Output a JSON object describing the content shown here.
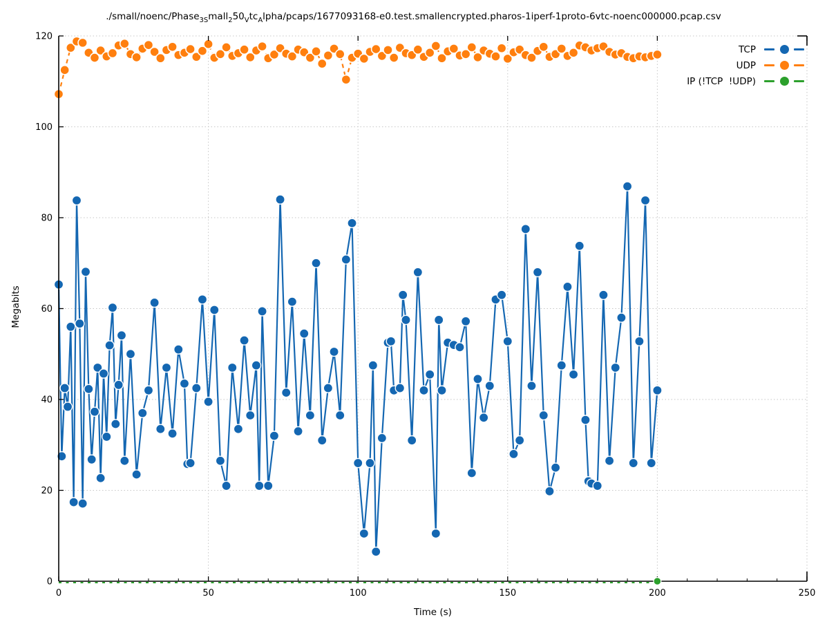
{
  "figure": {
    "xlabel": "Time (s)",
    "ylabel": "Megabits",
    "title_segments": [
      {
        "t": "./small/noenc/Phase"
      },
      {
        "s": "3S"
      },
      {
        "t": "mall"
      },
      {
        "s": "2"
      },
      {
        "t": "50"
      },
      {
        "s": "V"
      },
      {
        "t": "tc"
      },
      {
        "s": "A"
      },
      {
        "t": "lpha/pcaps/1677093168-e0.test.smallencrypted.pharos-1iperf-1proto-6vtc-noenc000000.pcap.csv"
      }
    ]
  },
  "colors": {
    "tcp": "#1467b2",
    "udp": "#ff7f0e",
    "ip": "#2ca02c",
    "axis": "#000000",
    "grid": "#c6c6c6",
    "marker_edge": "#ffffff",
    "background": "#ffffff"
  },
  "chart_data": {
    "type": "line",
    "title": "./small/noenc/Phase3Small250vtcAlpha/pcaps/1677093168-e0.test.smallencrypted.pharos-1iperf-1proto-6vtc-noenc000000.pcap.csv",
    "xlabel": "Time (s)",
    "ylabel": "Megabits",
    "xlim": [
      0,
      250
    ],
    "ylim": [
      0,
      120
    ],
    "xticks": [
      0,
      50,
      100,
      150,
      200,
      250
    ],
    "yticks": [
      0,
      20,
      40,
      60,
      80,
      100,
      120
    ],
    "x_minor_tick_step": 10,
    "grid": "dotted",
    "legend_position": "top-right-inside",
    "series": [
      {
        "name": "TCP",
        "color_key": "tcp",
        "line": "solid",
        "marker": "filled-circle",
        "points": [
          [
            0,
            65.3
          ],
          [
            1,
            27.5
          ],
          [
            2,
            42.5
          ],
          [
            3,
            38.4
          ],
          [
            4,
            56.0
          ],
          [
            5,
            17.4
          ],
          [
            6,
            83.8
          ],
          [
            7,
            56.7
          ],
          [
            8,
            17.1
          ],
          [
            9,
            68.1
          ],
          [
            10,
            42.3
          ],
          [
            11,
            26.8
          ],
          [
            12,
            37.3
          ],
          [
            13,
            47.0
          ],
          [
            14,
            22.7
          ],
          [
            15,
            45.7
          ],
          [
            16,
            31.8
          ],
          [
            17,
            51.9
          ],
          [
            18,
            60.2
          ],
          [
            19,
            34.6
          ],
          [
            20,
            43.2
          ],
          [
            21,
            54.1
          ],
          [
            22,
            26.5
          ],
          [
            24,
            50.0
          ],
          [
            26,
            23.5
          ],
          [
            28,
            37.0
          ],
          [
            30,
            42.0
          ],
          [
            32,
            61.3
          ],
          [
            34,
            33.5
          ],
          [
            36,
            47.0
          ],
          [
            38,
            32.5
          ],
          [
            40,
            51.0
          ],
          [
            42,
            43.5
          ],
          [
            43,
            25.8
          ],
          [
            44,
            26.0
          ],
          [
            46,
            42.5
          ],
          [
            48,
            62.0
          ],
          [
            50,
            39.5
          ],
          [
            52,
            59.7
          ],
          [
            54,
            26.5
          ],
          [
            56,
            21.0
          ],
          [
            58,
            47.0
          ],
          [
            60,
            33.5
          ],
          [
            62,
            53.0
          ],
          [
            64,
            36.5
          ],
          [
            66,
            47.5
          ],
          [
            67,
            21.0
          ],
          [
            68,
            59.4
          ],
          [
            70,
            21.0
          ],
          [
            72,
            32.0
          ],
          [
            74,
            84.0
          ],
          [
            76,
            41.5
          ],
          [
            78,
            61.5
          ],
          [
            80,
            33.0
          ],
          [
            82,
            54.5
          ],
          [
            84,
            36.5
          ],
          [
            86,
            70.0
          ],
          [
            88,
            31.0
          ],
          [
            90,
            42.5
          ],
          [
            92,
            50.5
          ],
          [
            94,
            36.5
          ],
          [
            96,
            70.8
          ],
          [
            98,
            78.8
          ],
          [
            100,
            26.0
          ],
          [
            102,
            10.5
          ],
          [
            104,
            26.0
          ],
          [
            105,
            47.5
          ],
          [
            106,
            6.5
          ],
          [
            108,
            31.5
          ],
          [
            110,
            52.5
          ],
          [
            111,
            52.8
          ],
          [
            112,
            42.0
          ],
          [
            114,
            42.5
          ],
          [
            115,
            63.0
          ],
          [
            116,
            57.5
          ],
          [
            118,
            31.0
          ],
          [
            120,
            68.0
          ],
          [
            122,
            42.0
          ],
          [
            124,
            45.5
          ],
          [
            126,
            10.5
          ],
          [
            127,
            57.5
          ],
          [
            128,
            42.0
          ],
          [
            130,
            52.5
          ],
          [
            132,
            52.0
          ],
          [
            134,
            51.5
          ],
          [
            136,
            57.2
          ],
          [
            138,
            23.8
          ],
          [
            140,
            44.5
          ],
          [
            142,
            36.0
          ],
          [
            144,
            43.0
          ],
          [
            146,
            62.0
          ],
          [
            148,
            63.0
          ],
          [
            150,
            52.8
          ],
          [
            152,
            28.0
          ],
          [
            154,
            31.0
          ],
          [
            156,
            77.5
          ],
          [
            158,
            43.0
          ],
          [
            160,
            68.0
          ],
          [
            162,
            36.5
          ],
          [
            164,
            19.8
          ],
          [
            166,
            25.0
          ],
          [
            168,
            47.5
          ],
          [
            170,
            64.8
          ],
          [
            172,
            45.5
          ],
          [
            174,
            73.8
          ],
          [
            176,
            35.5
          ],
          [
            177,
            22.0
          ],
          [
            178,
            21.5
          ],
          [
            180,
            21.0
          ],
          [
            182,
            63.0
          ],
          [
            184,
            26.5
          ],
          [
            186,
            47.0
          ],
          [
            188,
            58.0
          ],
          [
            190,
            86.9
          ],
          [
            192,
            26.0
          ],
          [
            194,
            52.8
          ],
          [
            196,
            83.8
          ],
          [
            198,
            26.0
          ],
          [
            200,
            42.0
          ]
        ]
      },
      {
        "name": "UDP",
        "color_key": "udp",
        "line": "dashed",
        "marker": "filled-circle",
        "x_start": 0,
        "x_step": 2,
        "values": [
          107.2,
          112.5,
          117.4,
          118.8,
          118.5,
          116.3,
          115.2,
          116.8,
          115.5,
          116.2,
          117.9,
          118.3,
          116.0,
          115.3,
          117.2,
          118.0,
          116.5,
          115.1,
          116.9,
          117.6,
          115.8,
          116.3,
          117.1,
          115.4,
          116.7,
          118.2,
          115.2,
          116.0,
          117.5,
          115.6,
          116.2,
          117.0,
          115.3,
          116.8,
          117.7,
          115.1,
          115.9,
          117.3,
          116.1,
          115.5,
          117.0,
          116.4,
          115.2,
          116.6,
          113.9,
          115.7,
          117.2,
          116.0,
          110.4,
          115.2,
          116.1,
          115.0,
          116.5,
          117.1,
          115.6,
          116.9,
          115.2,
          117.4,
          116.2,
          115.8,
          117.0,
          115.4,
          116.3,
          117.8,
          115.1,
          116.6,
          117.2,
          115.7,
          116.0,
          117.5,
          115.3,
          116.8,
          116.1,
          115.5,
          117.3,
          115.0,
          116.4,
          117.0,
          115.8,
          115.2,
          116.7,
          117.6,
          115.4,
          116.0,
          117.2,
          115.6,
          116.3,
          117.9,
          117.5,
          116.8,
          117.3,
          117.7,
          116.5,
          115.9,
          116.2,
          115.4,
          115.1,
          115.5,
          115.3,
          115.6,
          115.9
        ]
      },
      {
        "name": "IP (!TCP  !UDP)",
        "color_key": "ip",
        "line": "dashed",
        "marker": "filled-circle",
        "constant_value": 0.0,
        "x_range": [
          0,
          200
        ],
        "visible_point": [
          200,
          0
        ]
      }
    ]
  }
}
